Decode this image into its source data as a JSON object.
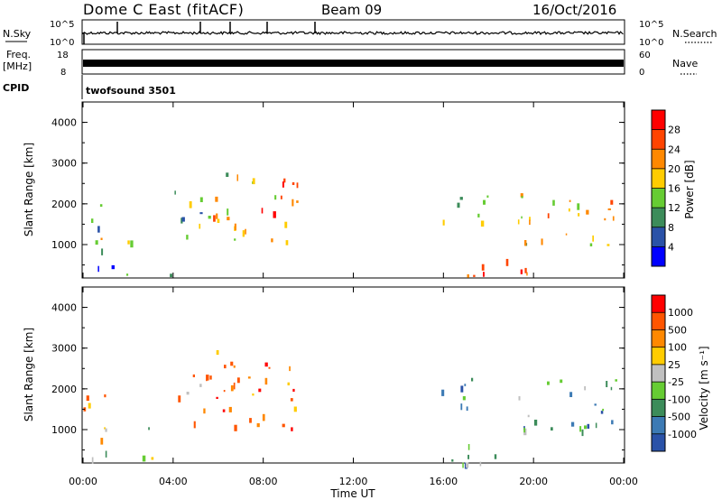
{
  "header": {
    "station": "Dome C East (fitACF)",
    "beam": "Beam 09",
    "date": "16/Oct/2016",
    "nsky_label": "N.Sky",
    "nsearch_label": "N.Search",
    "freq_label_1": "Freq.",
    "freq_label_2": "[MHz]",
    "nave_label": "Nave",
    "cpid_label": "CPID",
    "cpid_value": "twofsound 3501",
    "noise_ticks": [
      "10^5",
      "10^0"
    ],
    "freq_ticks_left": [
      "18",
      "8"
    ],
    "nave_ticks_right": [
      "60",
      "0"
    ]
  },
  "colors": {
    "power_scale": [
      "#0000ff",
      "#2a52a8",
      "#3c8c5a",
      "#66cc33",
      "#ffcc00",
      "#ff8800",
      "#ff4400",
      "#ff0000"
    ],
    "velocity_scale": [
      "#2a52a8",
      "#3c7ab4",
      "#3c8c5a",
      "#66cc33",
      "#c0c0c0",
      "#ffcc00",
      "#ff8800",
      "#ff5500",
      "#ff0000"
    ]
  },
  "chart_data": [
    {
      "type": "heatmap",
      "name": "power",
      "xlabel": "Time UT",
      "ylabel": "Slant Range [km]",
      "xlim": [
        0,
        24
      ],
      "ylim": [
        180,
        4500
      ],
      "x_ticks": [
        "00:00",
        "04:00",
        "08:00",
        "12:00",
        "16:00",
        "20:00",
        "00:00"
      ],
      "y_ticks": [
        1000,
        2000,
        3000,
        4000
      ],
      "colorbar_label": "Power [dB]",
      "colorbar_ticks": [
        4,
        8,
        12,
        16,
        20,
        24,
        28
      ],
      "regions": [
        {
          "t0": 0.0,
          "t1": 1.0,
          "r0": 600,
          "r1": 2200,
          "level": 0.45
        },
        {
          "t0": 0.2,
          "t1": 4.6,
          "r0": 1020,
          "r1": 1120,
          "level": 0.35
        },
        {
          "t0": 0.1,
          "t1": 4.0,
          "r0": 250,
          "r1": 520,
          "level": 0.25
        },
        {
          "t0": 4.0,
          "t1": 5.5,
          "r0": 1100,
          "r1": 2400,
          "level": 0.45
        },
        {
          "t0": 5.5,
          "t1": 7.5,
          "r0": 1100,
          "r1": 3000,
          "level": 0.55
        },
        {
          "t0": 7.5,
          "t1": 9.5,
          "r0": 1000,
          "r1": 2700,
          "level": 0.7
        },
        {
          "t0": 15.8,
          "t1": 18.0,
          "r0": 1500,
          "r1": 2300,
          "level": 0.45
        },
        {
          "t0": 16.5,
          "t1": 19.8,
          "r0": 1020,
          "r1": 1120,
          "level": 0.3
        },
        {
          "t0": 19.3,
          "t1": 23.8,
          "r0": 1000,
          "r1": 2300,
          "level": 0.6
        },
        {
          "t0": 16.3,
          "t1": 20.0,
          "r0": 180,
          "r1": 700,
          "level": 0.9
        }
      ]
    },
    {
      "type": "heatmap",
      "name": "velocity",
      "xlabel": "Time UT",
      "ylabel": "Slant Range [km]",
      "xlim": [
        0,
        24
      ],
      "ylim": [
        180,
        4500
      ],
      "x_ticks": [
        "00:00",
        "04:00",
        "08:00",
        "12:00",
        "16:00",
        "20:00",
        "00:00"
      ],
      "y_ticks": [
        1000,
        2000,
        3000,
        4000
      ],
      "colorbar_label": "Velocity [m s⁻¹]",
      "colorbar_ticks": [
        1000,
        500,
        100,
        25,
        -25,
        -100,
        -500,
        -1000
      ],
      "regions": [
        {
          "t0": 0.0,
          "t1": 1.0,
          "r0": 600,
          "r1": 2200,
          "level": 0.65
        },
        {
          "t0": 0.2,
          "t1": 4.6,
          "r0": 1020,
          "r1": 1120,
          "level": 0.45
        },
        {
          "t0": 0.1,
          "t1": 4.0,
          "r0": 250,
          "r1": 520,
          "level": 0.55
        },
        {
          "t0": 4.0,
          "t1": 5.5,
          "r0": 1100,
          "r1": 2400,
          "level": 0.75
        },
        {
          "t0": 5.5,
          "t1": 7.5,
          "r0": 1100,
          "r1": 3000,
          "level": 0.8
        },
        {
          "t0": 7.5,
          "t1": 9.5,
          "r0": 1000,
          "r1": 2700,
          "level": 0.8
        },
        {
          "t0": 15.8,
          "t1": 18.0,
          "r0": 1500,
          "r1": 2300,
          "level": 0.2
        },
        {
          "t0": 16.5,
          "t1": 19.8,
          "r0": 1020,
          "r1": 1120,
          "level": 0.45
        },
        {
          "t0": 19.3,
          "t1": 23.8,
          "r0": 1000,
          "r1": 2300,
          "level": 0.25
        },
        {
          "t0": 16.3,
          "t1": 20.0,
          "r0": 180,
          "r1": 700,
          "level": 0.3
        }
      ]
    }
  ]
}
